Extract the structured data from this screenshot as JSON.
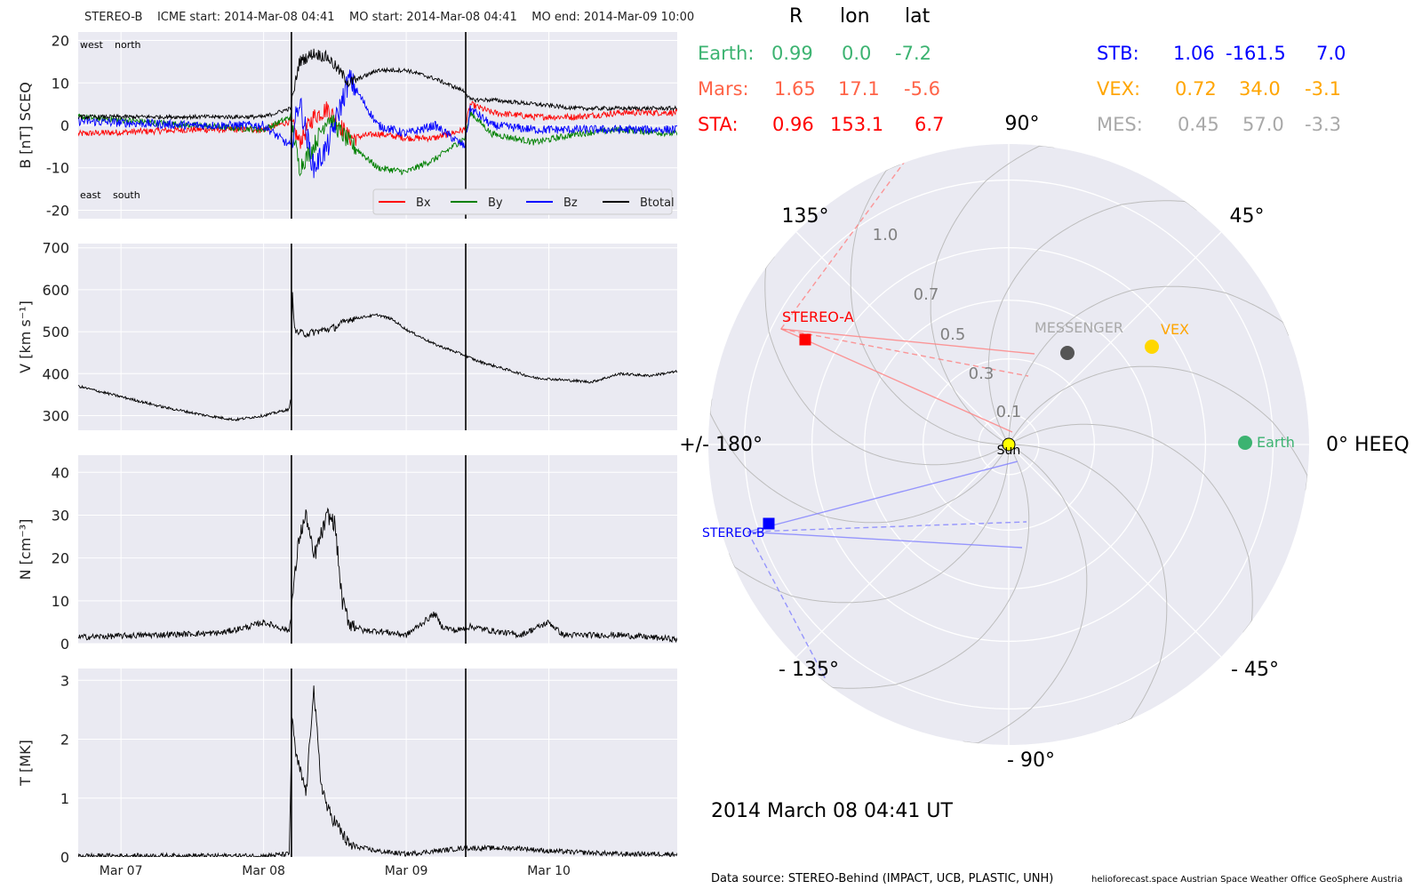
{
  "title": {
    "spacecraft": "STEREO-B",
    "icme_start": "ICME start: 2014-Mar-08 04:41",
    "mo_start": "MO start: 2014-Mar-08 04:41",
    "mo_end": "MO end: 2014-Mar-09 10:00"
  },
  "positions": {
    "headers": [
      "R",
      "lon",
      "lat"
    ],
    "rows": [
      {
        "label": "Earth:",
        "R": "0.99",
        "lon": "0.0",
        "lat": "-7.2",
        "color": "#3cb371"
      },
      {
        "label": "Mars:",
        "R": "1.65",
        "lon": "17.1",
        "lat": "-5.6",
        "color": "#ff6347"
      },
      {
        "label": "STA:",
        "R": "0.96",
        "lon": "153.1",
        "lat": "6.7",
        "color": "#ff0000"
      },
      {
        "label": "STB:",
        "R": "1.06",
        "lon": "-161.5",
        "lat": "7.0",
        "color": "#0000ff"
      },
      {
        "label": "VEX:",
        "R": "0.72",
        "lon": "34.0",
        "lat": "-3.1",
        "color": "#ffa500"
      },
      {
        "label": "MES:",
        "R": "0.45",
        "lon": "57.0",
        "lat": "-3.3",
        "color": "#a9a9a9"
      }
    ]
  },
  "event_time": "2014 March 08  04:41 UT",
  "footer": {
    "source": "Data source: STEREO-Behind (IMPACT, UCB, PLASTIC, UNH)",
    "credits": "helioforecast.space   Austrian Space Weather Office   GeoSphere Austria"
  },
  "chart_data": [
    {
      "type": "line",
      "panel": "magnetic-field",
      "ylabel": "B [nT] SCEQ",
      "ylim": [
        -22,
        22
      ],
      "yticks": [
        -20,
        -10,
        0,
        10,
        20
      ],
      "xlim": [
        -1.3,
        2.9
      ],
      "xticks": [
        {
          "x": -1,
          "label": "Mar 07"
        },
        {
          "x": 0,
          "label": "Mar 08"
        },
        {
          "x": 1,
          "label": "Mar 09"
        },
        {
          "x": 2,
          "label": "Mar 10"
        }
      ],
      "x_unit": "days since 2014-Mar-08 00:00",
      "vlines": [
        0.195,
        1.417
      ],
      "corner_labels": {
        "top_left": "west    north",
        "bottom_left": "east    south"
      },
      "legend": "bottom-right",
      "series": [
        {
          "name": "Bx",
          "color": "#ff0000",
          "x": [
            -1.3,
            -0.5,
            0,
            0.19,
            0.25,
            0.35,
            0.45,
            0.6,
            0.8,
            1.0,
            1.2,
            1.41,
            1.45,
            1.6,
            1.9,
            2.2,
            2.5,
            2.9
          ],
          "y": [
            -2,
            -1,
            -1,
            1,
            -4,
            2,
            4,
            -3,
            -2,
            -3,
            -3,
            -1,
            5,
            3,
            2,
            2,
            3,
            3
          ]
        },
        {
          "name": "By",
          "color": "#008000",
          "x": [
            -1.3,
            -0.5,
            0,
            0.19,
            0.25,
            0.35,
            0.45,
            0.6,
            0.8,
            1.0,
            1.2,
            1.41,
            1.45,
            1.6,
            1.9,
            2.2,
            2.5,
            2.9
          ],
          "y": [
            2,
            0,
            -1,
            2,
            -10,
            -5,
            2,
            -4,
            -10,
            -11,
            -8,
            -3,
            3,
            -2,
            -4,
            -2,
            -1,
            -2
          ]
        },
        {
          "name": "Bz",
          "color": "#0000ff",
          "x": [
            -1.3,
            -0.5,
            0,
            0.19,
            0.25,
            0.35,
            0.45,
            0.6,
            0.8,
            1.0,
            1.2,
            1.41,
            1.45,
            1.6,
            1.9,
            2.2,
            2.5,
            2.9
          ],
          "y": [
            1,
            0,
            0,
            -5,
            6,
            -10,
            -5,
            11,
            0,
            -2,
            0,
            -5,
            4,
            0,
            -1,
            -1,
            -1,
            -1
          ]
        },
        {
          "name": "Btotal",
          "color": "#000000",
          "x": [
            -1.3,
            -0.5,
            0,
            0.19,
            0.25,
            0.35,
            0.45,
            0.6,
            0.8,
            1.0,
            1.2,
            1.41,
            1.45,
            1.6,
            1.9,
            2.2,
            2.5,
            2.9
          ],
          "y": [
            2,
            2,
            2,
            4,
            15,
            17,
            16,
            10,
            13,
            13,
            11,
            8,
            6,
            6,
            5,
            4,
            4,
            4
          ]
        }
      ]
    },
    {
      "type": "line",
      "panel": "speed",
      "ylabel": "V [km s⁻¹]",
      "ylim": [
        265,
        710
      ],
      "yticks": [
        300,
        400,
        500,
        600,
        700
      ],
      "xlim": [
        -1.3,
        2.9
      ],
      "vlines": [
        0.195,
        1.417
      ],
      "series": [
        {
          "name": "V",
          "color": "#000000",
          "x": [
            -1.3,
            -1.0,
            -0.7,
            -0.4,
            -0.2,
            0,
            0.18,
            0.195,
            0.2,
            0.22,
            0.3,
            0.5,
            0.6,
            0.8,
            0.9,
            1.0,
            1.2,
            1.4,
            1.5,
            1.7,
            1.9,
            2.1,
            2.3,
            2.5,
            2.7,
            2.9
          ],
          "y": [
            370,
            345,
            320,
            300,
            290,
            300,
            315,
            350,
            600,
            500,
            495,
            510,
            530,
            540,
            530,
            505,
            470,
            445,
            430,
            410,
            390,
            385,
            380,
            400,
            395,
            405
          ]
        }
      ]
    },
    {
      "type": "line",
      "panel": "density",
      "ylabel": "N [cm⁻³]",
      "ylim": [
        0,
        44
      ],
      "yticks": [
        0,
        10,
        20,
        30,
        40
      ],
      "xlim": [
        -1.3,
        2.9
      ],
      "vlines": [
        0.195,
        1.417
      ],
      "series": [
        {
          "name": "N",
          "color": "#000000",
          "x": [
            -1.3,
            -0.8,
            -0.3,
            -0.1,
            0,
            0.18,
            0.2,
            0.25,
            0.3,
            0.35,
            0.45,
            0.5,
            0.55,
            0.6,
            0.7,
            0.8,
            1.0,
            1.2,
            1.25,
            1.35,
            1.45,
            1.6,
            1.8,
            2.0,
            2.1,
            2.3,
            2.5,
            2.9
          ],
          "y": [
            1.5,
            2,
            2.5,
            4,
            5,
            3,
            10,
            25,
            30,
            20,
            30,
            28,
            10,
            5,
            3,
            3,
            2,
            7,
            4,
            3,
            4,
            3,
            2,
            5,
            2,
            2,
            2,
            1
          ]
        }
      ]
    },
    {
      "type": "line",
      "panel": "temperature",
      "ylabel": "T [MK]",
      "ylim": [
        0,
        3.2
      ],
      "yticks": [
        0,
        1,
        2,
        3
      ],
      "xlim": [
        -1.3,
        2.9
      ],
      "vlines": [
        0.195,
        1.417
      ],
      "series": [
        {
          "name": "T",
          "color": "#000000",
          "x": [
            -1.3,
            -0.5,
            0,
            0.18,
            0.2,
            0.22,
            0.25,
            0.3,
            0.35,
            0.4,
            0.45,
            0.5,
            0.55,
            0.6,
            0.8,
            1.0,
            1.2,
            1.4,
            1.6,
            1.8,
            2.0,
            2.5,
            2.9
          ],
          "y": [
            0.02,
            0.02,
            0.02,
            0.05,
            2.5,
            1.8,
            1.5,
            1.1,
            2.9,
            1.3,
            0.8,
            0.6,
            0.4,
            0.2,
            0.1,
            0.05,
            0.1,
            0.15,
            0.15,
            0.15,
            0.1,
            0.05,
            0.05
          ]
        }
      ]
    },
    {
      "type": "scatter",
      "panel": "heliospheric-positions-polar",
      "projection": "polar",
      "r_ticks": [
        0.1,
        0.3,
        0.5,
        0.7,
        1.0
      ],
      "theta_labels": [
        "0° HEEQ",
        "45°",
        "90°",
        "135°",
        "+/- 180°",
        "- 135°",
        "- 90°",
        "- 45°"
      ],
      "points": [
        {
          "name": "Sun",
          "lon": 0,
          "r": 0,
          "color": "#ffff00"
        },
        {
          "name": "Earth",
          "lon": 0.0,
          "r": 0.99,
          "color": "#3cb371"
        },
        {
          "name": "STEREO-A",
          "lon": 153.1,
          "r": 0.96,
          "color": "#ff0000"
        },
        {
          "name": "STEREO-B",
          "lon": -161.5,
          "r": 1.06,
          "color": "#0000ff"
        },
        {
          "name": "VEX",
          "lon": 34.0,
          "r": 0.72,
          "color": "#ffd700"
        },
        {
          "name": "MESSENGER",
          "lon": 57.0,
          "r": 0.45,
          "color": "#555555"
        }
      ]
    }
  ]
}
